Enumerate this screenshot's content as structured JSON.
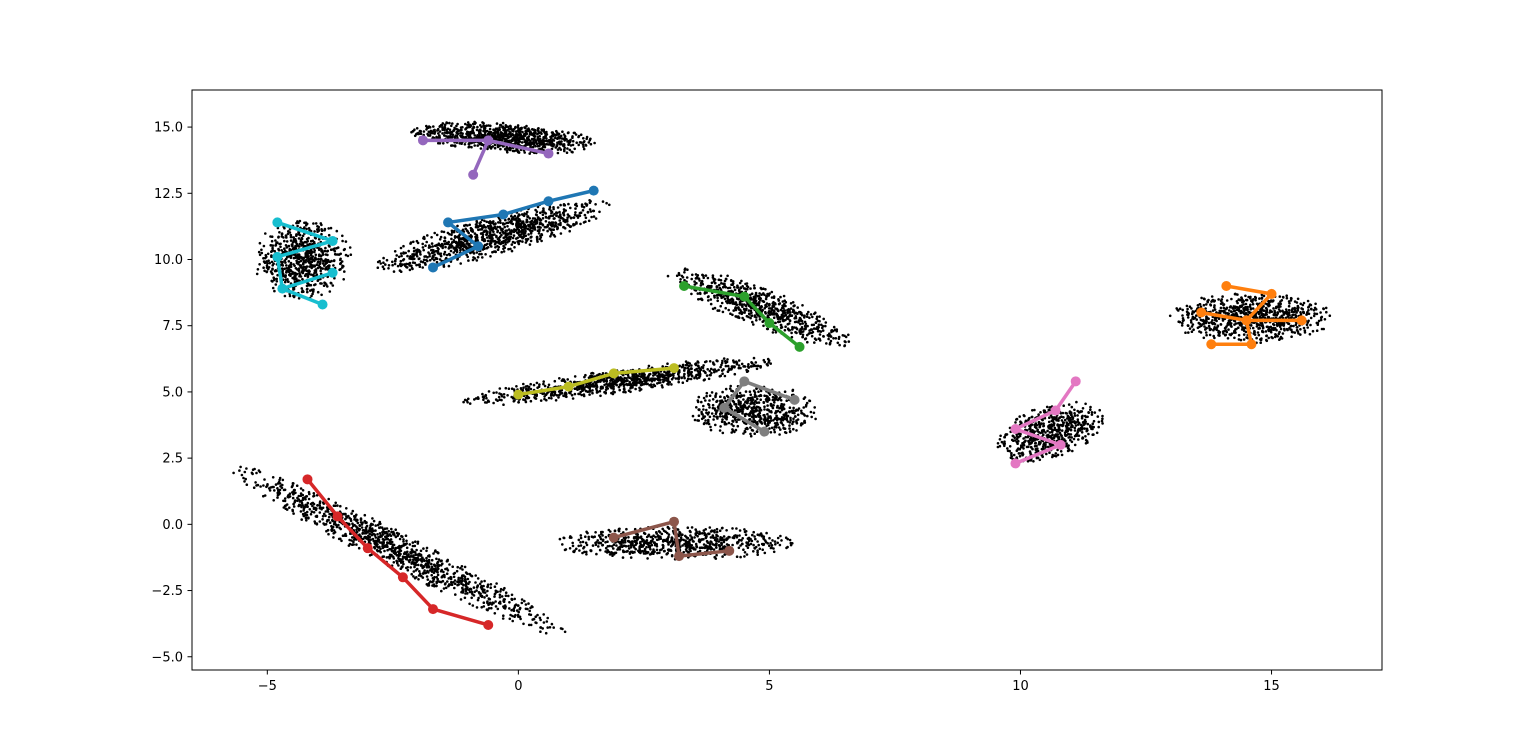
{
  "chart_data": {
    "type": "scatter",
    "title": "",
    "xlabel": "",
    "ylabel": "",
    "xlim": [
      -6.5,
      17.2
    ],
    "ylim": [
      -5.5,
      16.4
    ],
    "xticks": [
      -5,
      0,
      5,
      10,
      15
    ],
    "yticks": [
      -5.0,
      -2.5,
      0.0,
      2.5,
      5.0,
      7.5,
      10.0,
      12.5,
      15.0
    ],
    "xtick_labels": [
      "−5",
      "0",
      "5",
      "10",
      "15"
    ],
    "ytick_labels": [
      "−5.0",
      "−2.5",
      "0.0",
      "2.5",
      "5.0",
      "7.5",
      "10.0",
      "12.5",
      "15.0"
    ],
    "grid": false,
    "point_color": "#000000",
    "clusters": [
      {
        "center": [
          -0.3,
          14.6
        ],
        "sx": 1.9,
        "sy": 0.55,
        "angle_deg": -8,
        "n": 900
      },
      {
        "center": [
          -0.5,
          10.9
        ],
        "sx": 2.6,
        "sy": 0.7,
        "angle_deg": 28,
        "n": 1000
      },
      {
        "center": [
          -4.3,
          10.0
        ],
        "sx": 1.0,
        "sy": 1.5,
        "angle_deg": 0,
        "n": 700
      },
      {
        "center": [
          4.8,
          8.2
        ],
        "sx": 2.3,
        "sy": 0.65,
        "angle_deg": -38,
        "n": 700
      },
      {
        "center": [
          14.6,
          7.8
        ],
        "sx": 1.65,
        "sy": 0.95,
        "angle_deg": 0,
        "n": 800
      },
      {
        "center": [
          2.0,
          5.4
        ],
        "sx": 3.3,
        "sy": 0.45,
        "angle_deg": 14,
        "n": 900
      },
      {
        "center": [
          4.7,
          4.3
        ],
        "sx": 1.3,
        "sy": 1.0,
        "angle_deg": 0,
        "n": 600
      },
      {
        "center": [
          10.6,
          3.5
        ],
        "sx": 1.3,
        "sy": 0.85,
        "angle_deg": 50,
        "n": 600
      },
      {
        "center": [
          -2.4,
          -1.0
        ],
        "sx": 4.7,
        "sy": 0.55,
        "angle_deg": -44,
        "n": 1100
      },
      {
        "center": [
          3.1,
          -0.7
        ],
        "sx": 2.4,
        "sy": 0.65,
        "angle_deg": 0,
        "n": 700
      }
    ],
    "series": [
      {
        "color": "#1f77b4",
        "points": [
          [
            -1.7,
            9.7
          ],
          [
            -0.8,
            10.5
          ],
          [
            -1.4,
            11.4
          ],
          [
            -0.3,
            11.7
          ],
          [
            0.6,
            12.2
          ],
          [
            1.5,
            12.6
          ]
        ],
        "segments": [
          [
            0,
            1
          ],
          [
            1,
            2
          ],
          [
            2,
            3
          ],
          [
            3,
            4
          ],
          [
            4,
            5
          ]
        ]
      },
      {
        "color": "#ff7f0e",
        "points": [
          [
            14.1,
            9.0
          ],
          [
            15.0,
            8.7
          ],
          [
            14.5,
            7.7
          ],
          [
            13.6,
            8.0
          ],
          [
            15.6,
            7.7
          ],
          [
            13.8,
            6.8
          ],
          [
            14.6,
            6.8
          ]
        ],
        "segments": [
          [
            0,
            1
          ],
          [
            1,
            2
          ],
          [
            3,
            2
          ],
          [
            2,
            4
          ],
          [
            2,
            6
          ],
          [
            6,
            5
          ]
        ]
      },
      {
        "color": "#2ca02c",
        "points": [
          [
            3.3,
            9.0
          ],
          [
            4.5,
            8.6
          ],
          [
            5.0,
            7.6
          ],
          [
            5.6,
            6.7
          ]
        ],
        "segments": [
          [
            0,
            1
          ],
          [
            1,
            2
          ],
          [
            2,
            3
          ]
        ]
      },
      {
        "color": "#d62728",
        "points": [
          [
            -4.2,
            1.7
          ],
          [
            -3.6,
            0.3
          ],
          [
            -3.0,
            -0.9
          ],
          [
            -2.3,
            -2.0
          ],
          [
            -1.7,
            -3.2
          ],
          [
            -0.6,
            -3.8
          ]
        ],
        "segments": [
          [
            0,
            1
          ],
          [
            1,
            2
          ],
          [
            2,
            3
          ],
          [
            3,
            4
          ],
          [
            4,
            5
          ]
        ]
      },
      {
        "color": "#9467bd",
        "points": [
          [
            -1.9,
            14.5
          ],
          [
            -0.6,
            14.5
          ],
          [
            -0.9,
            13.2
          ],
          [
            0.6,
            14.0
          ]
        ],
        "segments": [
          [
            0,
            1
          ],
          [
            1,
            2
          ],
          [
            1,
            3
          ]
        ]
      },
      {
        "color": "#8c564b",
        "points": [
          [
            1.9,
            -0.5
          ],
          [
            3.1,
            0.1
          ],
          [
            3.2,
            -1.2
          ],
          [
            4.2,
            -1.0
          ]
        ],
        "segments": [
          [
            0,
            1
          ],
          [
            1,
            2
          ],
          [
            2,
            3
          ]
        ]
      },
      {
        "color": "#e377c2",
        "points": [
          [
            11.1,
            5.4
          ],
          [
            10.7,
            4.3
          ],
          [
            9.9,
            3.6
          ],
          [
            10.8,
            3.0
          ],
          [
            9.9,
            2.3
          ]
        ],
        "segments": [
          [
            0,
            1
          ],
          [
            1,
            2
          ],
          [
            2,
            3
          ],
          [
            3,
            4
          ]
        ]
      },
      {
        "color": "#7f7f7f",
        "points": [
          [
            4.5,
            5.4
          ],
          [
            5.5,
            4.7
          ],
          [
            4.1,
            4.4
          ],
          [
            4.9,
            3.5
          ]
        ],
        "segments": [
          [
            0,
            1
          ],
          [
            0,
            2
          ],
          [
            2,
            3
          ]
        ]
      },
      {
        "color": "#bcbd22",
        "points": [
          [
            0.0,
            4.9
          ],
          [
            1.0,
            5.2
          ],
          [
            1.9,
            5.7
          ],
          [
            3.1,
            5.9
          ]
        ],
        "segments": [
          [
            0,
            1
          ],
          [
            1,
            2
          ],
          [
            2,
            3
          ]
        ]
      },
      {
        "color": "#17becf",
        "points": [
          [
            -4.8,
            11.4
          ],
          [
            -3.7,
            10.7
          ],
          [
            -4.8,
            10.1
          ],
          [
            -4.7,
            8.9
          ],
          [
            -3.7,
            9.5
          ],
          [
            -3.9,
            8.3
          ]
        ],
        "segments": [
          [
            0,
            1
          ],
          [
            1,
            2
          ],
          [
            2,
            3
          ],
          [
            3,
            4
          ],
          [
            3,
            5
          ]
        ]
      }
    ]
  }
}
